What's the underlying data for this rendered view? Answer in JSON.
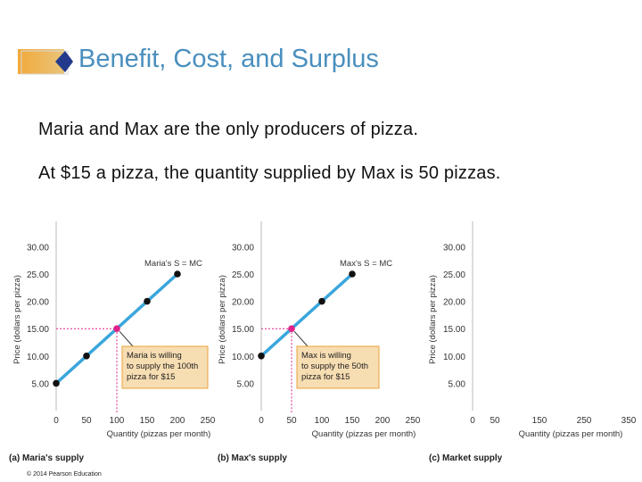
{
  "slide": {
    "title": "Benefit, Cost, and Surplus",
    "line1": "Maria and Max are the only producers of pizza.",
    "line2": "At $15 a pizza, the quantity supplied by Max is 50 pizzas.",
    "copyright": "© 2014 Pearson Education"
  },
  "colors": {
    "title": "#4a8fbe",
    "supply_line": "#3aa6dc",
    "point": "#111111",
    "highlight": "#e0218a",
    "note_fill": "#f7ddb2",
    "note_border": "#e8a23a"
  },
  "chart_data": [
    {
      "type": "line",
      "caption": "(a) Maria's supply",
      "xlabel": "Quantity (pizzas per month)",
      "ylabel": "Price (dollars per pizza)",
      "x_ticks": [
        "0",
        "50",
        "100",
        "150",
        "200",
        "250"
      ],
      "y_ticks": [
        "5.00",
        "10.00",
        "15.00",
        "20.00",
        "25.00",
        "30.00"
      ],
      "xlim": [
        0,
        250
      ],
      "ylim": [
        0,
        30
      ],
      "series": [
        {
          "name": "Maria's S = MC",
          "x": [
            0,
            50,
            100,
            150,
            200
          ],
          "y": [
            5,
            10,
            15,
            20,
            25
          ]
        }
      ],
      "highlight": {
        "x": 100,
        "y": 15,
        "x_label": "100",
        "y_label": "15.00"
      },
      "annotation": [
        "Maria is willing",
        "to supply the 100th",
        "pizza for $15"
      ]
    },
    {
      "type": "line",
      "caption": "(b) Max's supply",
      "xlabel": "Quantity (pizzas per month)",
      "ylabel": "Price (dollars per pizza)",
      "x_ticks": [
        "0",
        "50",
        "100",
        "150",
        "200",
        "250"
      ],
      "y_ticks": [
        "5.00",
        "10.00",
        "15.00",
        "20.00",
        "25.00",
        "30.00"
      ],
      "xlim": [
        0,
        250
      ],
      "ylim": [
        0,
        30
      ],
      "series": [
        {
          "name": "Max's S = MC",
          "x": [
            0,
            50,
            100,
            150
          ],
          "y": [
            10,
            15,
            20,
            25
          ]
        }
      ],
      "highlight": {
        "x": 50,
        "y": 15,
        "x_label": "50",
        "y_label": "15.00"
      },
      "annotation": [
        "Max is willing",
        "to supply the 50th",
        "pizza for $15"
      ]
    },
    {
      "type": "line",
      "caption": "(c) Market supply",
      "xlabel": "Quantity (pizzas per month)",
      "ylabel": "Price (dollars per pizza)",
      "x_ticks": [
        "0",
        "50",
        "150",
        "250",
        "350"
      ],
      "x_tick_values": [
        0,
        50,
        150,
        250,
        350
      ],
      "y_ticks": [
        "5.00",
        "10.00",
        "15.00",
        "20.00",
        "25.00",
        "30.00"
      ],
      "xlim": [
        0,
        350
      ],
      "ylim": [
        0,
        30
      ],
      "series": []
    }
  ]
}
